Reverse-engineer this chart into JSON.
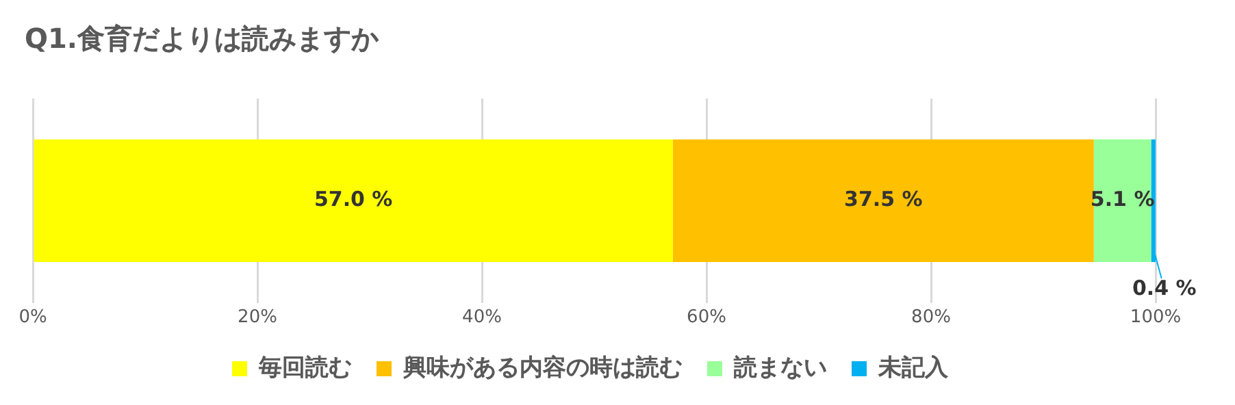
{
  "chart_data": {
    "type": "bar",
    "orientation": "horizontal",
    "stacked": true,
    "title": "Q1.食育だよりは読みますか",
    "categories": [
      null
    ],
    "series": [
      {
        "name": "毎回読む",
        "color": "#ffff00",
        "values": [
          57.0
        ],
        "value_labels": [
          "57.0 %"
        ]
      },
      {
        "name": "興味がある内容の時は読む",
        "color": "#ffc000",
        "values": [
          37.5
        ],
        "value_labels": [
          "37.5 %"
        ]
      },
      {
        "name": "読まない",
        "color": "#99ff99",
        "values": [
          5.1
        ],
        "value_labels": [
          "5.1 %"
        ]
      },
      {
        "name": "未記入",
        "color": "#00b0f0",
        "values": [
          0.4
        ],
        "value_labels": [
          "0.4 %"
        ]
      }
    ],
    "xlim": [
      0,
      100
    ],
    "xticks": [
      {
        "value": 0,
        "label": "0%"
      },
      {
        "value": 20,
        "label": "20%"
      },
      {
        "value": 40,
        "label": "40%"
      },
      {
        "value": 60,
        "label": "60%"
      },
      {
        "value": 80,
        "label": "80%"
      },
      {
        "value": 100,
        "label": "100%"
      }
    ],
    "grid": "x",
    "legend": "bottom"
  }
}
